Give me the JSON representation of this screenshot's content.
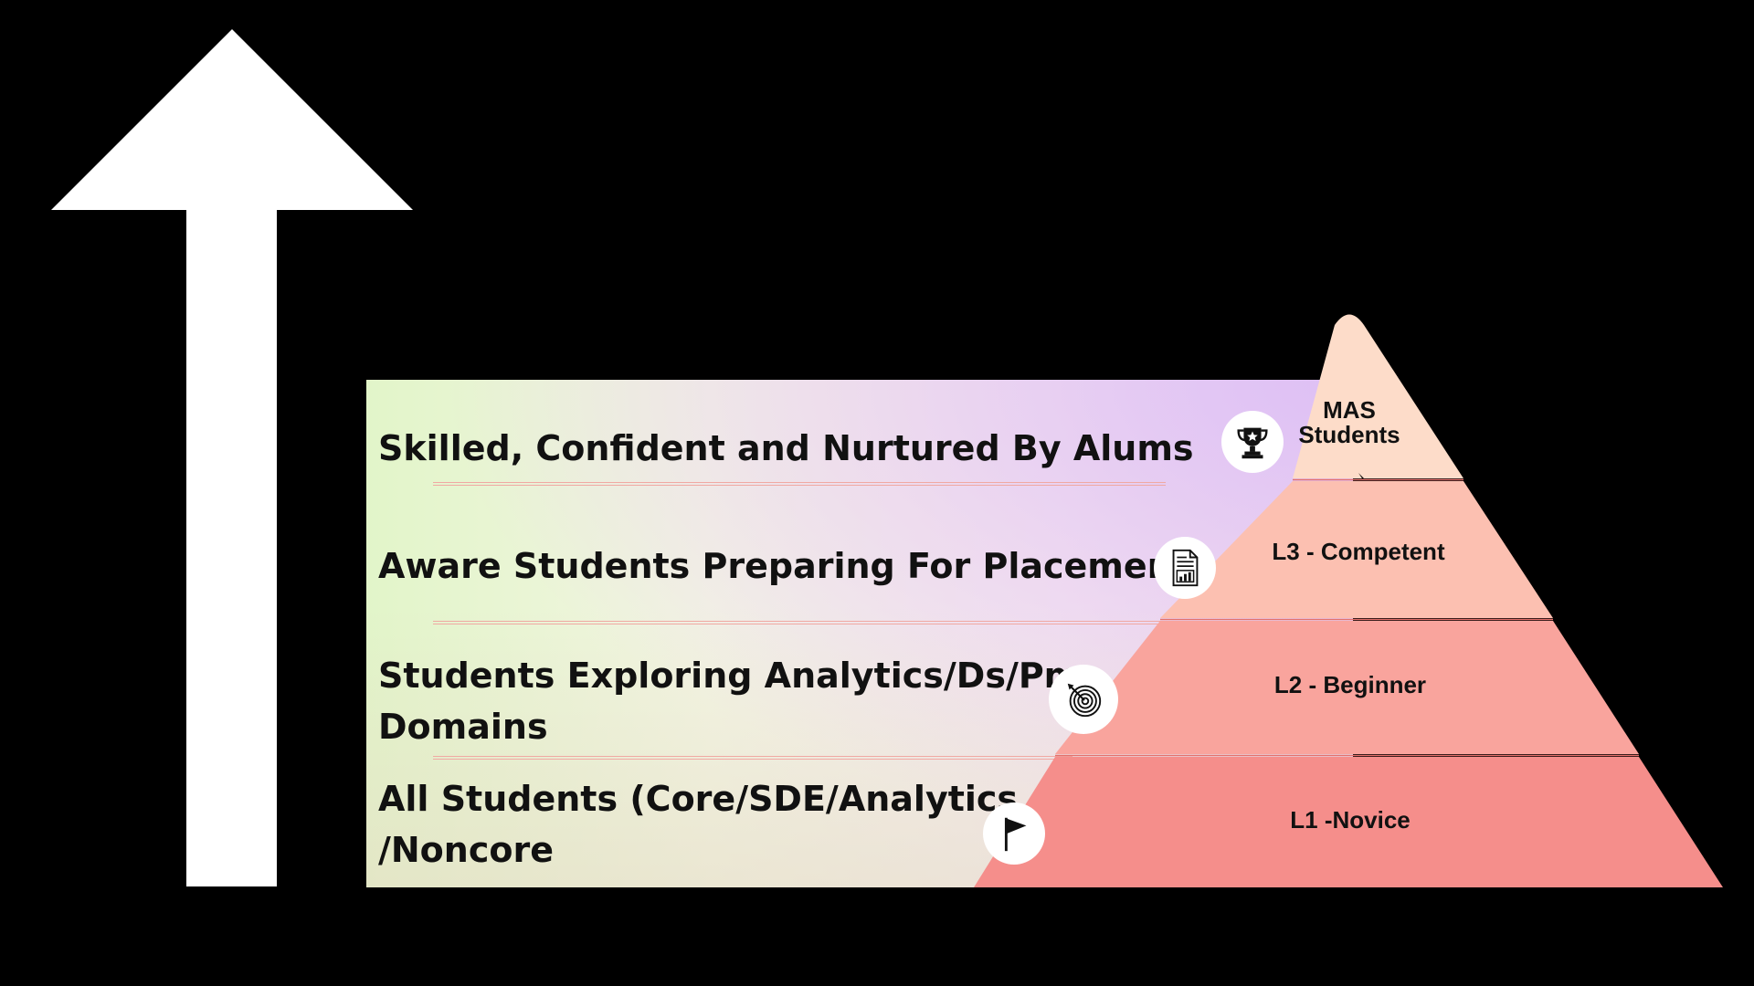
{
  "levels": [
    {
      "tier": "MAS\nStudents",
      "description": "Skilled, Confident and Nurtured By Alums",
      "icon": "trophy-icon"
    },
    {
      "tier": "L3 - Competent",
      "description": "Aware Students Preparing For Placements",
      "icon": "report-chart-icon"
    },
    {
      "tier": "L2 - Beginner",
      "description": "Students Exploring Analytics/Ds/Pm\nDomains",
      "icon": "target-icon"
    },
    {
      "tier": "L1 -Novice",
      "description": "All Students (Core/SDE/Analytics\n/Noncore",
      "icon": "flag-icon"
    }
  ],
  "colors": {
    "background": "#000000",
    "arrow": "#ffffff",
    "tier_top": "#fddcc9",
    "tier_l3": "#fcc0b1",
    "tier_l2": "#f9a49d",
    "tier_l1": "#f58e8b",
    "tier_separator": "#e4716c"
  }
}
